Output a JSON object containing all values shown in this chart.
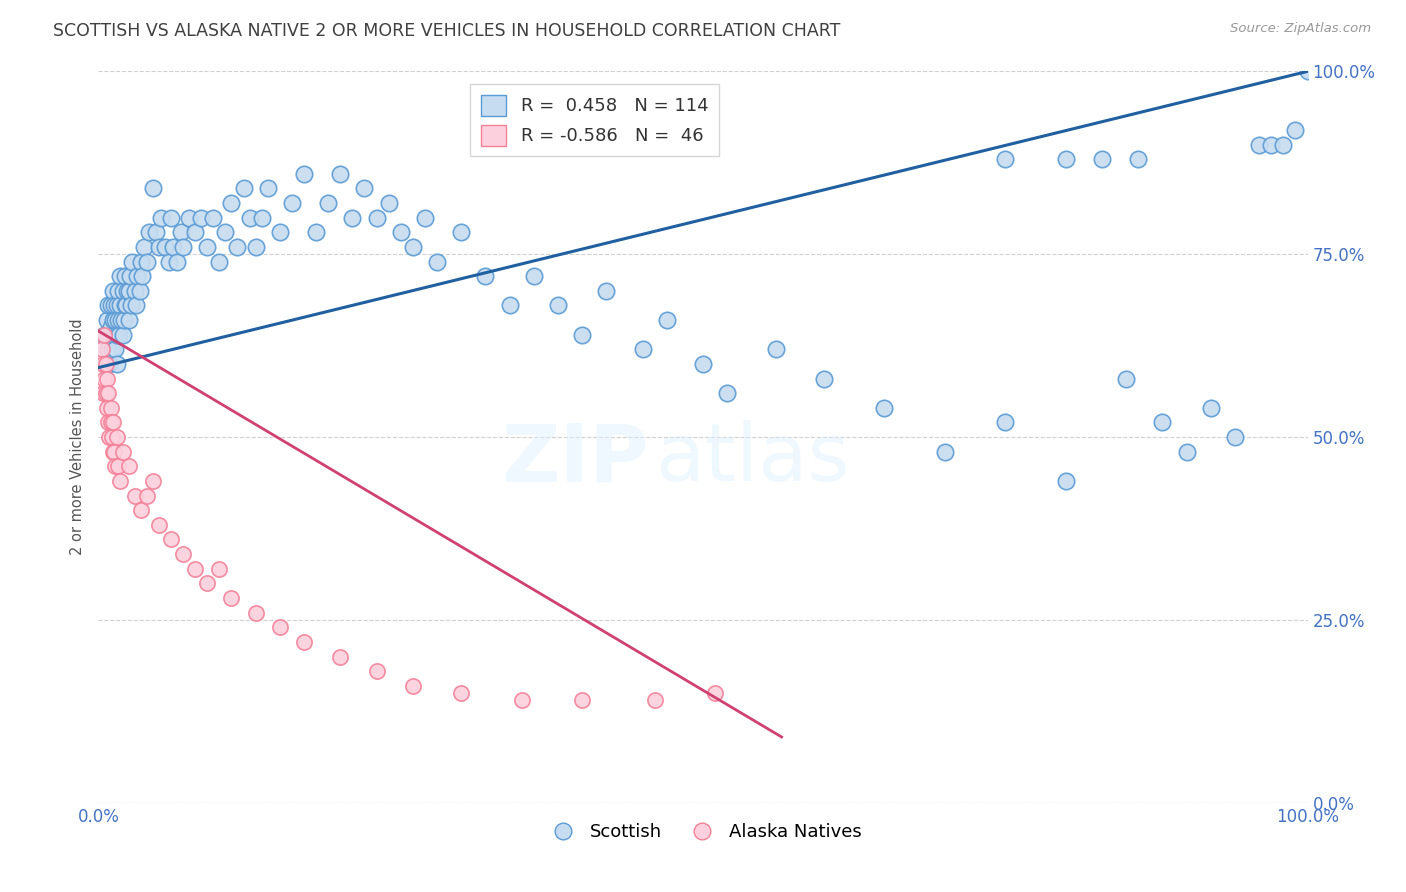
{
  "title": "SCOTTISH VS ALASKA NATIVE 2 OR MORE VEHICLES IN HOUSEHOLD CORRELATION CHART",
  "source": "Source: ZipAtlas.com",
  "ylabel": "2 or more Vehicles in Household",
  "xlim": [
    0.0,
    1.0
  ],
  "ylim": [
    0.0,
    1.0
  ],
  "ytick_positions": [
    0.0,
    0.25,
    0.5,
    0.75,
    1.0
  ],
  "ytick_labels_right": [
    "0.0%",
    "25.0%",
    "50.0%",
    "75.0%",
    "100.0%"
  ],
  "xtick_positions": [
    0.0,
    0.1,
    0.2,
    0.3,
    0.4,
    0.5,
    0.6,
    0.7,
    0.8,
    0.9,
    1.0
  ],
  "xtick_labels": [
    "0.0%",
    "",
    "",
    "",
    "",
    "",
    "",
    "",
    "",
    "",
    "100.0%"
  ],
  "legend_R1": "0.458",
  "legend_N1": "114",
  "legend_R2": "-0.586",
  "legend_N2": "46",
  "legend_label1": "Scottish",
  "legend_label2": "Alaska Natives",
  "blue_marker_facecolor": "#c6dcf0",
  "blue_marker_edgecolor": "#5b9bd5",
  "pink_marker_facecolor": "#fcd0dd",
  "pink_marker_edgecolor": "#f48098",
  "blue_line_color": "#2060a0",
  "pink_line_color": "#d04070",
  "background_color": "#ffffff",
  "grid_color": "#d0d0d0",
  "title_color": "#404040",
  "axis_tick_color": "#4472c4",
  "blue_line_x0": 0.0,
  "blue_line_y0": 0.595,
  "blue_line_x1": 1.0,
  "blue_line_y1": 1.0,
  "pink_line_x0": 0.0,
  "pink_line_y0": 0.645,
  "pink_line_x1": 0.565,
  "pink_line_y1": 0.09,
  "blue_x": [
    0.005,
    0.007,
    0.008,
    0.008,
    0.009,
    0.01,
    0.01,
    0.011,
    0.012,
    0.012,
    0.013,
    0.013,
    0.014,
    0.014,
    0.015,
    0.015,
    0.015,
    0.016,
    0.016,
    0.017,
    0.018,
    0.018,
    0.019,
    0.02,
    0.02,
    0.021,
    0.022,
    0.022,
    0.023,
    0.024,
    0.025,
    0.025,
    0.026,
    0.027,
    0.028,
    0.03,
    0.031,
    0.032,
    0.034,
    0.035,
    0.036,
    0.038,
    0.04,
    0.042,
    0.045,
    0.048,
    0.05,
    0.052,
    0.055,
    0.058,
    0.06,
    0.062,
    0.065,
    0.068,
    0.07,
    0.075,
    0.08,
    0.085,
    0.09,
    0.095,
    0.1,
    0.105,
    0.11,
    0.115,
    0.12,
    0.125,
    0.13,
    0.135,
    0.14,
    0.15,
    0.16,
    0.17,
    0.18,
    0.19,
    0.2,
    0.21,
    0.22,
    0.23,
    0.24,
    0.25,
    0.26,
    0.27,
    0.28,
    0.3,
    0.32,
    0.34,
    0.36,
    0.38,
    0.4,
    0.42,
    0.45,
    0.47,
    0.5,
    0.52,
    0.56,
    0.6,
    0.65,
    0.7,
    0.75,
    0.8,
    0.85,
    0.88,
    0.9,
    0.92,
    0.94,
    0.96,
    0.97,
    0.98,
    0.99,
    1.0,
    0.75,
    0.8,
    0.83,
    0.86
  ],
  "blue_y": [
    0.64,
    0.66,
    0.62,
    0.68,
    0.6,
    0.65,
    0.68,
    0.62,
    0.66,
    0.7,
    0.64,
    0.68,
    0.62,
    0.66,
    0.6,
    0.64,
    0.68,
    0.66,
    0.7,
    0.64,
    0.68,
    0.72,
    0.66,
    0.64,
    0.7,
    0.66,
    0.68,
    0.72,
    0.68,
    0.7,
    0.66,
    0.7,
    0.72,
    0.68,
    0.74,
    0.7,
    0.68,
    0.72,
    0.7,
    0.74,
    0.72,
    0.76,
    0.74,
    0.78,
    0.84,
    0.78,
    0.76,
    0.8,
    0.76,
    0.74,
    0.8,
    0.76,
    0.74,
    0.78,
    0.76,
    0.8,
    0.78,
    0.8,
    0.76,
    0.8,
    0.74,
    0.78,
    0.82,
    0.76,
    0.84,
    0.8,
    0.76,
    0.8,
    0.84,
    0.78,
    0.82,
    0.86,
    0.78,
    0.82,
    0.86,
    0.8,
    0.84,
    0.8,
    0.82,
    0.78,
    0.76,
    0.8,
    0.74,
    0.78,
    0.72,
    0.68,
    0.72,
    0.68,
    0.64,
    0.7,
    0.62,
    0.66,
    0.6,
    0.56,
    0.62,
    0.58,
    0.54,
    0.48,
    0.52,
    0.44,
    0.58,
    0.52,
    0.48,
    0.54,
    0.5,
    0.9,
    0.9,
    0.9,
    0.92,
    1.0,
    0.88,
    0.88,
    0.88,
    0.88
  ],
  "pink_x": [
    0.003,
    0.004,
    0.004,
    0.005,
    0.005,
    0.006,
    0.006,
    0.007,
    0.007,
    0.008,
    0.008,
    0.009,
    0.01,
    0.01,
    0.011,
    0.012,
    0.012,
    0.013,
    0.014,
    0.015,
    0.016,
    0.018,
    0.02,
    0.025,
    0.03,
    0.035,
    0.04,
    0.045,
    0.05,
    0.06,
    0.07,
    0.08,
    0.09,
    0.1,
    0.11,
    0.13,
    0.15,
    0.17,
    0.2,
    0.23,
    0.26,
    0.3,
    0.35,
    0.4,
    0.46,
    0.51
  ],
  "pink_y": [
    0.62,
    0.6,
    0.56,
    0.64,
    0.58,
    0.6,
    0.56,
    0.54,
    0.58,
    0.52,
    0.56,
    0.5,
    0.54,
    0.52,
    0.5,
    0.48,
    0.52,
    0.48,
    0.46,
    0.5,
    0.46,
    0.44,
    0.48,
    0.46,
    0.42,
    0.4,
    0.42,
    0.44,
    0.38,
    0.36,
    0.34,
    0.32,
    0.3,
    0.32,
    0.28,
    0.26,
    0.24,
    0.22,
    0.2,
    0.18,
    0.16,
    0.15,
    0.14,
    0.14,
    0.14,
    0.15
  ]
}
